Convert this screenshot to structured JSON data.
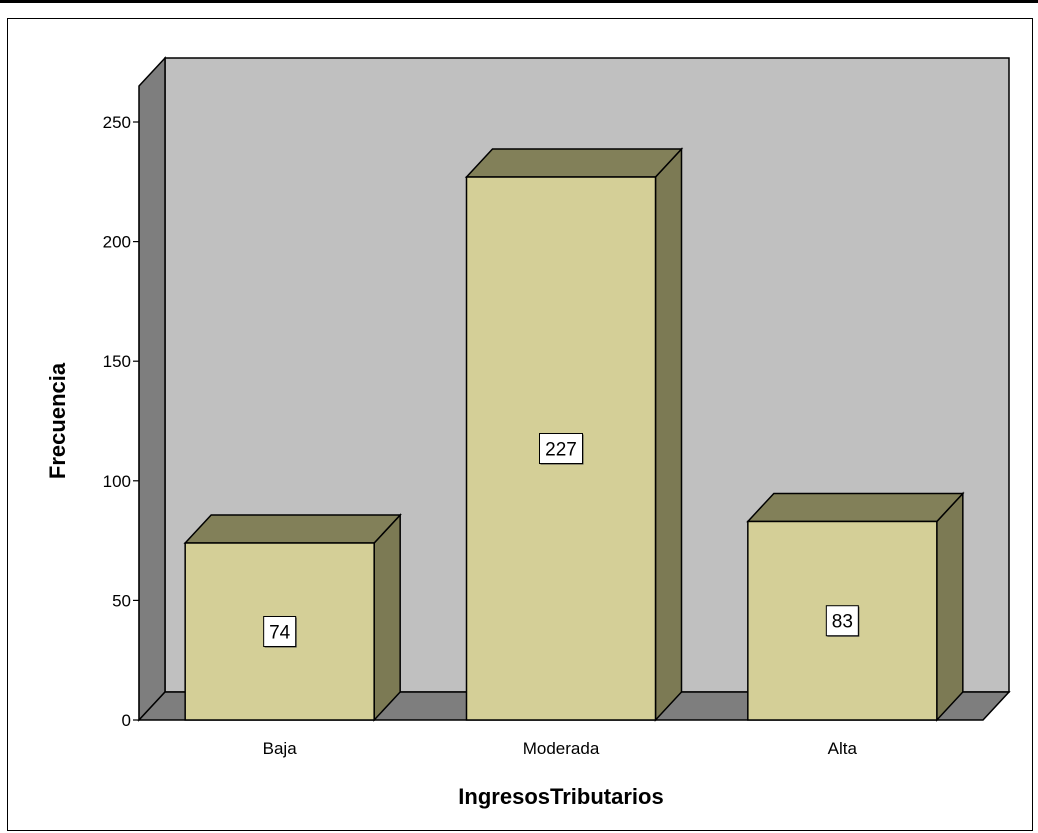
{
  "chart_data": {
    "type": "bar",
    "style": "3d",
    "categories": [
      "Baja",
      "Moderada",
      "Alta"
    ],
    "values": [
      74,
      227,
      83
    ],
    "data_labels": [
      "74",
      "227",
      "83"
    ],
    "xlabel": "IngresosTributarios",
    "ylabel": "Frecuencia",
    "ylim": [
      0,
      250
    ],
    "yticks": [
      "0",
      "50",
      "100",
      "150",
      "200",
      "250"
    ],
    "grid": false,
    "legend": "none",
    "colors": {
      "bar_front": "#d4cf97",
      "bar_top": "#828059",
      "bar_side": "#7c7a54",
      "back_wall": "#c0c0c0",
      "side_wall": "#7e7e7e",
      "floor": "#7e7e7e",
      "label_bg": "#ffffff"
    }
  }
}
